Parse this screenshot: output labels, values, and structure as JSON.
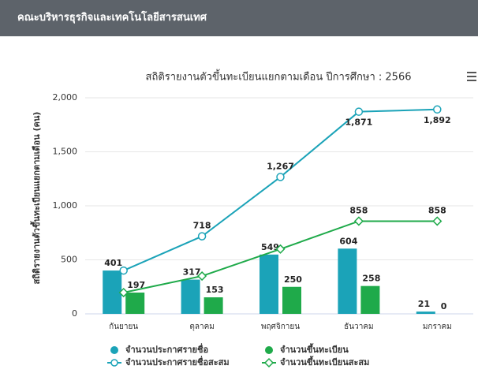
{
  "header": {
    "title": "คณะบริหารธุรกิจและเทคโนโลยีสารสนเทศ"
  },
  "chart_data": {
    "type": "bar",
    "title": "สถิติรายงานตัวขึ้นทะเบียนแยกตามเดือน ปีการศึกษา : 2566",
    "y_label": "สถิติรายงานตัวขึ้นทะเบียนแยกตามเดือน (คน)",
    "categories": [
      "กันยายน",
      "ตุลาคม",
      "พฤศจิกายน",
      "ธันวาคม",
      "มกราคม"
    ],
    "ylim": [
      0,
      2000
    ],
    "yticks": [
      0,
      500,
      {
        "value": 1000,
        "label": "1,000"
      },
      {
        "value": 1500,
        "label": "1,500"
      },
      {
        "value": 2000,
        "label": "2,000"
      }
    ],
    "grid": true,
    "series": [
      {
        "name": "จำนวนประกาศรายชื่อ",
        "type": "bar",
        "color": "#1ba3b8",
        "values": [
          401,
          317,
          549,
          604,
          21
        ]
      },
      {
        "name": "จำนวนขึ้นทะเบียน",
        "type": "bar",
        "color": "#1faa4a",
        "values": [
          197,
          153,
          250,
          258,
          0
        ]
      },
      {
        "name": "จำนวนประกาศรายชื่อสะสม",
        "type": "line",
        "marker": "circle",
        "color": "#1ba3b8",
        "values": [
          401,
          718,
          1267,
          1871,
          1892
        ],
        "value_labels": [
          null,
          "718",
          "1,267",
          "1,871",
          "1,892"
        ]
      },
      {
        "name": "จำนวนขึ้นทะเบียนสะสม",
        "type": "line",
        "marker": "diamond",
        "color": "#1faa4a",
        "values": [
          197,
          350,
          600,
          858,
          858
        ],
        "value_labels": [
          null,
          null,
          null,
          "858",
          "858"
        ]
      }
    ]
  }
}
